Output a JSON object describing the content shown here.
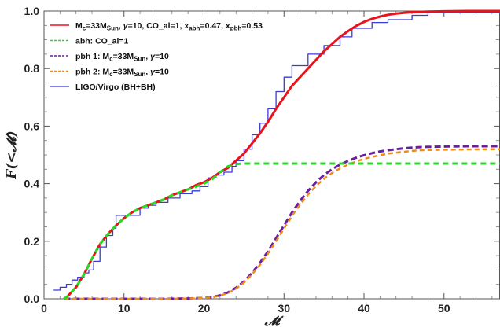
{
  "chart_data": {
    "type": "line",
    "xlabel": "𝓜",
    "ylabel": "F(<𝓜)",
    "xlim": [
      0,
      57
    ],
    "ylim": [
      0,
      1.0
    ],
    "x_ticks": [
      "0",
      "10",
      "20",
      "30",
      "40",
      "50"
    ],
    "y_ticks": [
      "0.0",
      "0.2",
      "0.4",
      "0.6",
      "0.8",
      "1.0"
    ],
    "frame": "box",
    "grid": false,
    "legend_position": "top-left",
    "legend": [
      {
        "series": "total",
        "segments": [
          {
            "t": "M"
          },
          {
            "t": "c",
            "sub": true
          },
          {
            "t": "=33M"
          },
          {
            "t": "Sun",
            "sub": true
          },
          {
            "t": ", "
          },
          {
            "t": "γ",
            "italic": true
          },
          {
            "t": "=10, CO_al=1, x"
          },
          {
            "t": "abh",
            "sub": true
          },
          {
            "t": "=0.47, x"
          },
          {
            "t": "pbh",
            "sub": true
          },
          {
            "t": "=0.53"
          }
        ]
      },
      {
        "series": "abh",
        "segments": [
          {
            "t": "abh: CO_al=1"
          }
        ]
      },
      {
        "series": "pbh1",
        "segments": [
          {
            "t": "pbh 1: M"
          },
          {
            "t": "c",
            "sub": true
          },
          {
            "t": "=33M"
          },
          {
            "t": "Sun",
            "sub": true
          },
          {
            "t": ", "
          },
          {
            "t": "γ",
            "italic": true
          },
          {
            "t": "=10"
          }
        ]
      },
      {
        "series": "pbh2",
        "segments": [
          {
            "t": "pbh 2: M"
          },
          {
            "t": "c",
            "sub": true
          },
          {
            "t": "=33M"
          },
          {
            "t": "Sun",
            "sub": true
          },
          {
            "t": ", "
          },
          {
            "t": "γ",
            "italic": true
          },
          {
            "t": "=10"
          }
        ]
      },
      {
        "series": "ligo",
        "segments": [
          {
            "t": "LIGO/Virgo (BH+BH)"
          }
        ]
      }
    ],
    "series": [
      {
        "id": "total",
        "color": "#e8141c",
        "dash": "solid",
        "width": 3,
        "x": [
          2.5,
          3,
          4,
          5,
          6,
          7,
          8,
          9,
          10,
          11,
          12,
          13,
          14,
          15,
          16,
          17,
          18,
          19,
          20,
          21,
          22,
          23,
          24,
          25,
          26,
          27,
          28,
          29,
          30,
          31,
          32,
          33,
          34,
          35,
          36,
          37,
          38,
          39,
          40,
          41,
          42,
          43,
          44,
          45,
          46,
          47,
          48,
          50,
          53,
          57
        ],
        "y": [
          0.0,
          0.01,
          0.04,
          0.085,
          0.14,
          0.19,
          0.225,
          0.255,
          0.28,
          0.3,
          0.315,
          0.325,
          0.335,
          0.345,
          0.36,
          0.37,
          0.38,
          0.395,
          0.405,
          0.42,
          0.44,
          0.455,
          0.48,
          0.505,
          0.54,
          0.575,
          0.615,
          0.66,
          0.7,
          0.74,
          0.77,
          0.8,
          0.83,
          0.86,
          0.885,
          0.91,
          0.93,
          0.948,
          0.962,
          0.973,
          0.981,
          0.987,
          0.991,
          0.994,
          0.996,
          0.997,
          0.998,
          0.999,
          1.0,
          1.0
        ]
      },
      {
        "id": "abh",
        "color": "#22dd22",
        "dash": "7,5",
        "width": 3,
        "x": [
          2.5,
          3,
          4,
          5,
          6,
          7,
          8,
          9,
          10,
          11,
          12,
          13,
          14,
          15,
          16,
          17,
          18,
          19,
          20,
          21,
          22,
          23,
          24,
          25,
          26,
          30,
          40,
          50,
          57
        ],
        "y": [
          0.0,
          0.01,
          0.04,
          0.085,
          0.14,
          0.19,
          0.225,
          0.255,
          0.28,
          0.3,
          0.315,
          0.325,
          0.335,
          0.345,
          0.36,
          0.37,
          0.38,
          0.39,
          0.4,
          0.415,
          0.44,
          0.46,
          0.468,
          0.47,
          0.47,
          0.47,
          0.47,
          0.47,
          0.47
        ]
      },
      {
        "id": "pbh1",
        "color": "#6a1fa0",
        "dash": "8,4",
        "width": 3,
        "x": [
          2.5,
          10,
          15,
          18,
          20,
          21,
          22,
          23,
          24,
          25,
          26,
          27,
          28,
          29,
          30,
          31,
          32,
          33,
          34,
          35,
          36,
          37,
          38,
          39,
          40,
          41,
          42,
          43,
          44,
          45,
          46,
          47,
          48,
          50,
          53,
          57
        ],
        "y": [
          0.0,
          0.0,
          0.0,
          0.001,
          0.003,
          0.006,
          0.012,
          0.022,
          0.038,
          0.06,
          0.09,
          0.125,
          0.165,
          0.21,
          0.255,
          0.3,
          0.34,
          0.375,
          0.405,
          0.43,
          0.45,
          0.466,
          0.479,
          0.49,
          0.499,
          0.506,
          0.512,
          0.516,
          0.52,
          0.523,
          0.525,
          0.527,
          0.528,
          0.529,
          0.53,
          0.53
        ]
      },
      {
        "id": "pbh2",
        "color": "#f08c1a",
        "dash": "6,4",
        "width": 2.5,
        "x": [
          2.5,
          10,
          15,
          18,
          20,
          21,
          22,
          23,
          24,
          25,
          26,
          27,
          28,
          29,
          30,
          31,
          32,
          33,
          34,
          35,
          36,
          37,
          38,
          39,
          40,
          41,
          42,
          43,
          44,
          45,
          46,
          47,
          48,
          50,
          53,
          57
        ],
        "y": [
          0.0,
          0.0,
          0.0,
          0.001,
          0.003,
          0.005,
          0.011,
          0.02,
          0.035,
          0.056,
          0.085,
          0.118,
          0.157,
          0.2,
          0.244,
          0.288,
          0.327,
          0.362,
          0.392,
          0.417,
          0.437,
          0.453,
          0.466,
          0.477,
          0.486,
          0.493,
          0.499,
          0.504,
          0.508,
          0.511,
          0.514,
          0.516,
          0.517,
          0.518,
          0.519,
          0.52
        ]
      },
      {
        "id": "ligo",
        "color": "#3b3bd6",
        "dash": "solid",
        "width": 1.3,
        "step": true,
        "x": [
          1.2,
          2.0,
          2.8,
          3.5,
          4.2,
          5.0,
          5.6,
          6.2,
          7.0,
          7.8,
          8.6,
          9.0,
          10.5,
          12.0,
          13.0,
          14.0,
          15.5,
          17.0,
          18.5,
          19.5,
          20.5,
          21.5,
          22.5,
          23.5,
          24.0,
          25.0,
          26.0,
          27.0,
          28.0,
          29.0,
          30.0,
          31.0,
          33.0,
          35.0,
          37.0,
          38.5,
          41.0,
          43.0,
          46.0,
          48.0,
          57.0
        ],
        "y": [
          0.03,
          0.04,
          0.05,
          0.065,
          0.075,
          0.09,
          0.1,
          0.13,
          0.18,
          0.22,
          0.245,
          0.29,
          0.29,
          0.315,
          0.325,
          0.335,
          0.35,
          0.365,
          0.375,
          0.39,
          0.42,
          0.43,
          0.44,
          0.46,
          0.48,
          0.52,
          0.57,
          0.61,
          0.66,
          0.72,
          0.77,
          0.81,
          0.85,
          0.88,
          0.91,
          0.94,
          0.96,
          0.97,
          0.985,
          0.995,
          0.995
        ]
      }
    ]
  }
}
